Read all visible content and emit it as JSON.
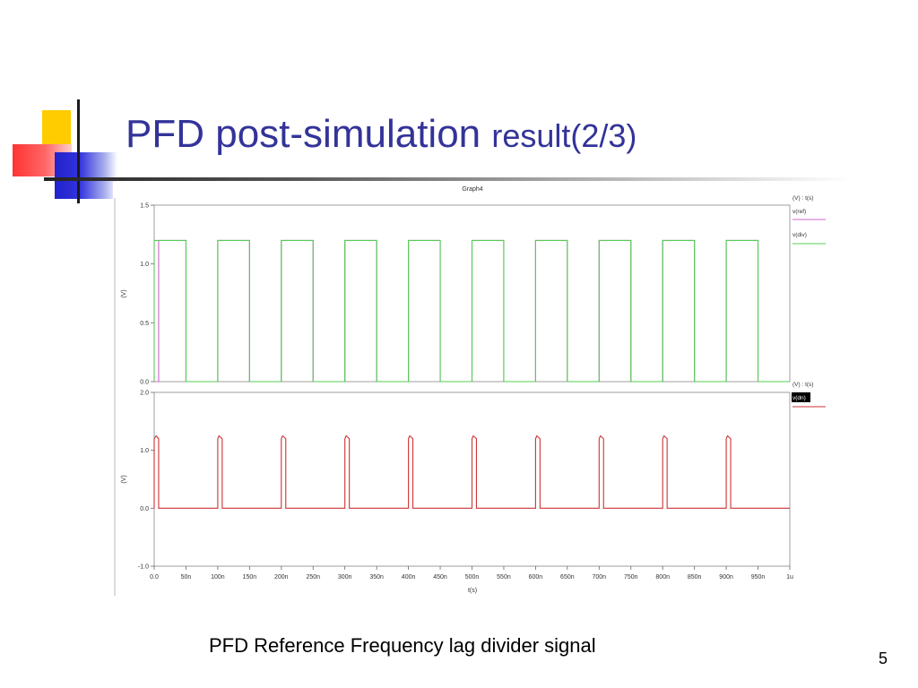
{
  "slide": {
    "title_main": "PFD post-simulation ",
    "title_small": "result(2/3)",
    "caption": "PFD  Reference Frequency lag divider signal",
    "page_number": "5"
  },
  "colors": {
    "title": "#333399",
    "ref": "#cc66cc",
    "div": "#55cc55",
    "dn": "#cc3333"
  },
  "chart_data": [
    {
      "type": "line",
      "title": "Graph4",
      "ylabel": "(V)",
      "xlabel": "t(s)",
      "legend_header": "(V) : t(s)",
      "legend_position": "right",
      "xlim": [
        0,
        1000
      ],
      "ylim": [
        0,
        1.5
      ],
      "yticks": [
        "0.0",
        "0.5",
        "1.0",
        "1.5"
      ],
      "series": [
        {
          "name": "v(ref)",
          "color": "#cc66cc",
          "x": [
            0,
            7,
            7,
            50,
            50,
            100,
            100,
            150,
            150,
            200,
            200,
            250,
            250,
            300,
            300,
            350,
            350,
            400,
            400,
            450,
            450,
            500,
            500,
            550,
            550,
            600,
            600,
            650,
            650,
            700,
            700,
            750,
            750,
            800,
            800,
            850,
            850,
            900,
            900,
            950,
            950,
            1000
          ],
          "y": [
            0,
            0,
            1.2,
            1.2,
            0,
            0,
            1.2,
            1.2,
            0,
            0,
            1.2,
            1.2,
            0,
            0,
            1.2,
            1.2,
            0,
            0,
            1.2,
            1.2,
            0,
            0,
            1.2,
            1.2,
            0,
            0,
            1.2,
            1.2,
            0,
            0,
            1.2,
            1.2,
            0,
            0,
            1.2,
            1.2,
            0,
            0,
            1.2,
            1.2,
            0,
            0
          ]
        },
        {
          "name": "v(div)",
          "color": "#55cc55",
          "x": [
            0,
            0,
            50,
            50,
            100,
            100,
            150,
            150,
            200,
            200,
            250,
            250,
            300,
            300,
            350,
            350,
            400,
            400,
            450,
            450,
            500,
            500,
            550,
            550,
            600,
            600,
            650,
            650,
            700,
            700,
            750,
            750,
            800,
            800,
            850,
            850,
            900,
            900,
            950,
            950,
            1000
          ],
          "y": [
            0,
            1.2,
            1.2,
            0,
            0,
            1.2,
            1.2,
            0,
            0,
            1.2,
            1.2,
            0,
            0,
            1.2,
            1.2,
            0,
            0,
            1.2,
            1.2,
            0,
            0,
            1.2,
            1.2,
            0,
            0,
            1.2,
            1.2,
            0,
            0,
            1.2,
            1.2,
            0,
            0,
            1.2,
            1.2,
            0,
            0,
            1.2,
            1.2,
            0,
            0
          ]
        }
      ]
    },
    {
      "type": "line",
      "ylabel": "(V)",
      "xlabel": "t(s)",
      "legend_header": "(V) : t(s)",
      "legend_position": "right",
      "xlim": [
        0,
        1000
      ],
      "ylim": [
        -1.0,
        2.0
      ],
      "yticks": [
        "-1.0",
        "0.0",
        "1.0",
        "2.0"
      ],
      "xticks": [
        "0.0",
        "50n",
        "100n",
        "150n",
        "200n",
        "250n",
        "300n",
        "350n",
        "400n",
        "450n",
        "500n",
        "550n",
        "600n",
        "650n",
        "700n",
        "750n",
        "800n",
        "850n",
        "900n",
        "950n",
        "1u"
      ],
      "series": [
        {
          "name": "v(dn)",
          "color": "#cc3333",
          "x": [
            0,
            0,
            3,
            7,
            7,
            100,
            100,
            102,
            107,
            107,
            200,
            200,
            202,
            207,
            207,
            300,
            300,
            302,
            307,
            307,
            400,
            400,
            402,
            407,
            407,
            500,
            500,
            502,
            507,
            507,
            600,
            600,
            602,
            607,
            607,
            700,
            700,
            702,
            707,
            707,
            800,
            800,
            802,
            807,
            807,
            900,
            900,
            902,
            907,
            907,
            1000
          ],
          "y": [
            0,
            1.2,
            1.25,
            1.2,
            0,
            0,
            1.2,
            1.25,
            1.2,
            0,
            0,
            1.2,
            1.25,
            1.2,
            0,
            0,
            1.2,
            1.25,
            1.2,
            0,
            0,
            1.2,
            1.25,
            1.2,
            0,
            0,
            1.2,
            1.25,
            1.2,
            0,
            0,
            1.2,
            1.25,
            1.2,
            0,
            0,
            1.2,
            1.25,
            1.2,
            0,
            0,
            1.2,
            1.25,
            1.2,
            0,
            0,
            1.2,
            1.25,
            1.2,
            0,
            0
          ]
        }
      ]
    }
  ]
}
